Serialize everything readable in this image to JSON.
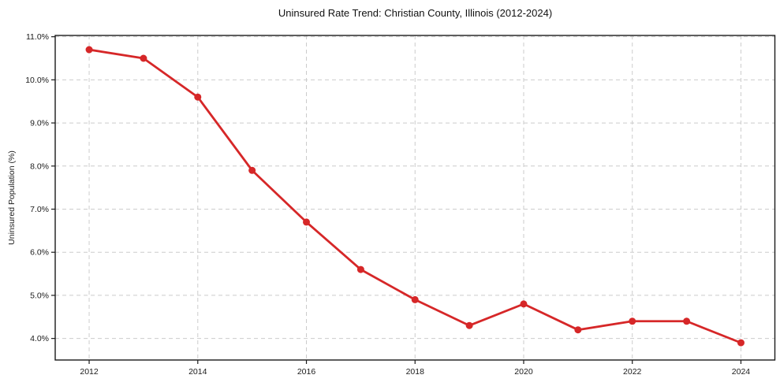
{
  "chart_data": {
    "type": "line",
    "title": "Uninsured Rate Trend: Christian County, Illinois (2012-2024)",
    "xlabel": "",
    "ylabel": "Uninsured Population (%)",
    "x": [
      2012,
      2013,
      2014,
      2015,
      2016,
      2017,
      2018,
      2019,
      2020,
      2021,
      2022,
      2023,
      2024
    ],
    "series": [
      {
        "name": "Uninsured rate",
        "values": [
          10.7,
          10.5,
          9.6,
          7.9,
          6.7,
          5.6,
          4.9,
          4.3,
          4.8,
          4.2,
          4.4,
          4.4,
          3.9
        ]
      }
    ],
    "x_ticks": [
      2012,
      2014,
      2016,
      2018,
      2020,
      2022,
      2024
    ],
    "x_tick_labels": [
      "2012",
      "2014",
      "2016",
      "2018",
      "2020",
      "2022",
      "2024"
    ],
    "y_ticks": [
      4,
      5,
      6,
      7,
      8,
      9,
      10,
      11
    ],
    "y_tick_labels": [
      "4.0%",
      "5.0%",
      "6.0%",
      "7.0%",
      "8.0%",
      "9.0%",
      "10.0%",
      "11.0%"
    ],
    "xlim": [
      2011.375,
      2024.625
    ],
    "ylim": [
      3.5,
      11.03
    ],
    "grid": "dashed-both-axes",
    "legend_position": "none",
    "marker": "circle",
    "colors": {
      "line": "#d62728",
      "marker": "#d62728",
      "grid": "#cccccc",
      "axis": "#1a1a1a",
      "text": "#1a1a1a",
      "background": "#ffffff"
    }
  }
}
